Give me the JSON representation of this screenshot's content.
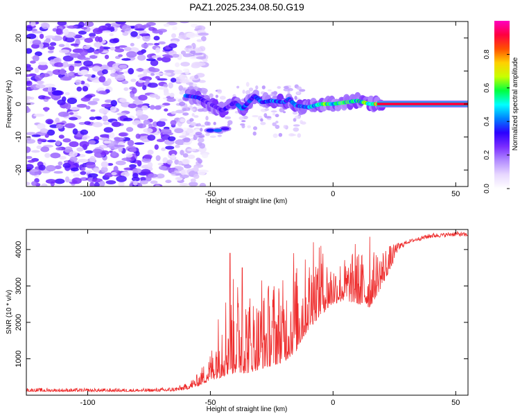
{
  "title": "PAZ1.2025.234.08.50.G19",
  "colors": {
    "snr_line": "#ee2b2b",
    "axis": "#000000",
    "background": "#ffffff"
  },
  "chart_data": [
    {
      "type": "heatmap",
      "name": "spectrogram",
      "xlabel": "Height of straight line (km)",
      "ylabel": "Frequency (Hz)",
      "xlim": [
        -125,
        55
      ],
      "ylim": [
        -25,
        25
      ],
      "xticks": [
        -100,
        -50,
        0,
        50
      ],
      "yticks": [
        20,
        10,
        0,
        -10,
        -20
      ],
      "xtick_labels": [
        "-100",
        "-50",
        "0",
        "50"
      ],
      "ytick_labels": [
        "20",
        "10",
        "0",
        "-10",
        "-20"
      ],
      "colorbar": {
        "label": "Normalized spectral amplitude",
        "range": [
          0.0,
          1.0
        ],
        "ticks": [
          0.0,
          0.2,
          0.4,
          0.6,
          0.8
        ],
        "tick_labels": [
          "0.0",
          "0.2",
          "0.4",
          "0.6",
          "0.8"
        ],
        "colormap": [
          "#ffffff",
          "#e8d8ff",
          "#b38cff",
          "#7a2cff",
          "#2c00ff",
          "#0080ff",
          "#00ffff",
          "#00ff40",
          "#c8ff00",
          "#ffd000",
          "#ff5000",
          "#ff0040",
          "#ff00c0"
        ]
      },
      "features": {
        "noise_region_x": [
          -125,
          -60
        ],
        "carrier_frequency_hz": 0,
        "carrier_track": [
          {
            "x": -60,
            "y": 2.5,
            "value": 0.4
          },
          {
            "x": -55,
            "y": 2.0,
            "value": 0.35
          },
          {
            "x": -50,
            "y": 0.0,
            "value": 0.25
          },
          {
            "x": -45,
            "y": -2.0,
            "value": 0.3
          },
          {
            "x": -40,
            "y": 0.5,
            "value": 0.3
          },
          {
            "x": -37,
            "y": -1.5,
            "value": 0.4
          },
          {
            "x": -32,
            "y": 2.5,
            "value": 0.35
          },
          {
            "x": -29,
            "y": 0.5,
            "value": 0.4
          },
          {
            "x": -25,
            "y": 1.0,
            "value": 0.4
          },
          {
            "x": -20,
            "y": 0.5,
            "value": 0.4
          },
          {
            "x": -18,
            "y": 1.5,
            "value": 0.35
          },
          {
            "x": -15,
            "y": -0.5,
            "value": 0.4
          },
          {
            "x": -10,
            "y": -1.0,
            "value": 0.4
          },
          {
            "x": -5,
            "y": 0.0,
            "value": 0.65
          },
          {
            "x": 0,
            "y": 0.0,
            "value": 0.55
          },
          {
            "x": 5,
            "y": 0.5,
            "value": 0.6
          },
          {
            "x": 10,
            "y": 1.0,
            "value": 0.5
          },
          {
            "x": 15,
            "y": 0.0,
            "value": 0.65
          },
          {
            "x": 25,
            "y": 0.0,
            "value": 0.9
          },
          {
            "x": 40,
            "y": 0.0,
            "value": 0.95
          },
          {
            "x": 55,
            "y": 0.0,
            "value": 0.95
          }
        ],
        "side_branch": [
          {
            "x": -50,
            "y": -8.0,
            "value": 0.35
          },
          {
            "x": -47,
            "y": -8.0,
            "value": 0.4
          },
          {
            "x": -44,
            "y": -7.5,
            "value": 0.3
          }
        ]
      }
    },
    {
      "type": "line",
      "name": "snr",
      "xlabel": "Height of straight line (km)",
      "ylabel": "SNR (10 * v/v)",
      "xlim": [
        -125,
        55
      ],
      "ylim": [
        0,
        4550
      ],
      "xticks": [
        -100,
        -50,
        0,
        50
      ],
      "yticks": [
        1000,
        2000,
        3000,
        4000
      ],
      "xtick_labels": [
        "-100",
        "-50",
        "0",
        "50"
      ],
      "ytick_labels": [
        "1000",
        "2000",
        "3000",
        "4000"
      ],
      "series": [
        {
          "name": "SNR",
          "envelope": {
            "x": [
              -125,
              -100,
              -75,
              -65,
              -60,
              -55,
              -50,
              -45,
              -40,
              -35,
              -30,
              -25,
              -20,
              -15,
              -10,
              -5,
              0,
              5,
              10,
              15,
              20,
              25,
              30,
              35,
              40,
              45,
              50,
              55
            ],
            "low": [
              100,
              100,
              100,
              110,
              150,
              250,
              400,
              500,
              600,
              600,
              700,
              800,
              900,
              1200,
              1800,
              2200,
              2500,
              2600,
              2500,
              2400,
              3000,
              3700,
              4100,
              4200,
              4250,
              4300,
              4300,
              4300
            ],
            "high": [
              200,
              190,
              190,
              230,
              320,
              600,
              1200,
              2900,
              3300,
              3000,
              2700,
              3300,
              3200,
              3600,
              3900,
              4100,
              3700,
              3800,
              4000,
              3900,
              4100,
              4150,
              4250,
              4350,
              4450,
              4450,
              4500,
              4450
            ]
          },
          "spikes": [
            {
              "x": -42,
              "y": 3900
            },
            {
              "x": -37,
              "y": 3500
            },
            {
              "x": -29,
              "y": 3150
            },
            {
              "x": -16,
              "y": 3900
            },
            {
              "x": -8,
              "y": 4200
            },
            {
              "x": -5,
              "y": 4100
            },
            {
              "x": 9,
              "y": 4150
            },
            {
              "x": 15,
              "y": 4350
            }
          ]
        }
      ]
    }
  ]
}
